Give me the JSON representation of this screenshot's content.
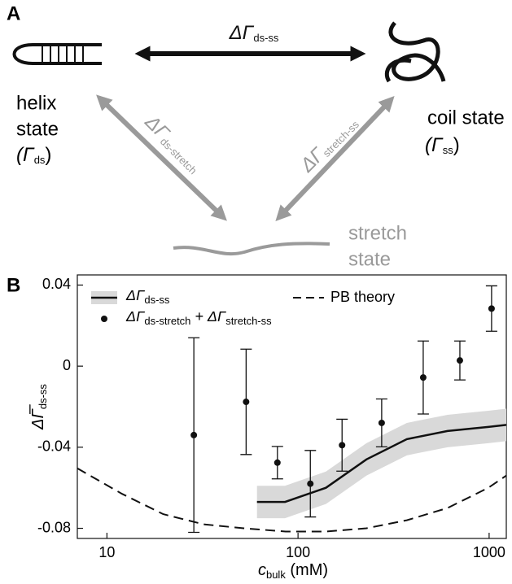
{
  "diagram": {
    "panel_label": "A",
    "top_arrow": [
      [
        "ΔΓ",
        "ds-ss"
      ]
    ],
    "left_arrow": [
      [
        "ΔΓ",
        "ds-stretch"
      ]
    ],
    "right_arrow": [
      [
        "ΔΓ",
        "stretch-ss"
      ]
    ],
    "helix_lines": [
      "helix",
      "state"
    ],
    "helix_energy": [
      [
        "(Γ",
        "ds"
      ],
      [
        ")"
      ]
    ],
    "coil_line": "coil state",
    "coil_energy": [
      [
        "(Γ",
        "ss"
      ],
      [
        ")"
      ]
    ],
    "stretch_lines": [
      "stretch",
      "state"
    ]
  },
  "chart_data": {
    "type": "line",
    "panel_label": "B",
    "x_label": [
      [
        "c",
        "bulk"
      ],
      [
        " (mM)"
      ]
    ],
    "y_label": [
      [
        "ΔΓ̅",
        "ds-ss"
      ]
    ],
    "log_x": true,
    "xlim": [
      7,
      1230
    ],
    "ylim": [
      -0.085,
      0.045
    ],
    "xticks": [
      10,
      100,
      1000
    ],
    "yticks": [
      0.04,
      0,
      -0.04,
      -0.08
    ],
    "legend": "upper left",
    "series": [
      {
        "name": [
          [
            "ΔΓ",
            "ds-ss"
          ]
        ],
        "kind": "band-line",
        "color": "#111111",
        "band_color": "#d9d9d9",
        "x": [
          61,
          85.5,
          140,
          228,
          371,
          606,
          990,
          1230
        ],
        "values": [
          -0.067,
          -0.067,
          -0.06,
          -0.046,
          -0.036,
          -0.032,
          -0.03,
          -0.029
        ],
        "upper": [
          -0.059,
          -0.059,
          -0.052,
          -0.038,
          -0.028,
          -0.024,
          -0.022,
          -0.021
        ],
        "lower": [
          -0.075,
          -0.075,
          -0.068,
          -0.054,
          -0.044,
          -0.04,
          -0.038,
          -0.037
        ]
      },
      {
        "name": [
          [
            "ΔΓ",
            "ds-stretch"
          ],
          [
            " + ΔΓ",
            "stretch-ss"
          ]
        ],
        "kind": "errorbar",
        "color": "#111111",
        "x": [
          28.5,
          53.5,
          78,
          116,
          170,
          274,
          452,
          703,
          1030
        ],
        "values": [
          -0.034,
          -0.0176,
          -0.0476,
          -0.058,
          -0.039,
          -0.028,
          -0.0056,
          0.0028,
          0.0284
        ],
        "errors": [
          0.048,
          0.026,
          0.008,
          0.0164,
          0.0128,
          0.0118,
          0.018,
          0.0096,
          0.0112
        ]
      },
      {
        "name": [
          [
            "PB theory"
          ]
        ],
        "kind": "dashed",
        "color": "#111111",
        "x": [
          7,
          12,
          19.7,
          32,
          52,
          86,
          140,
          228,
          371,
          606,
          990,
          1230
        ],
        "values": [
          -0.0504,
          -0.063,
          -0.073,
          -0.078,
          -0.08,
          -0.0816,
          -0.0816,
          -0.08,
          -0.076,
          -0.07,
          -0.06,
          -0.054
        ]
      }
    ]
  }
}
